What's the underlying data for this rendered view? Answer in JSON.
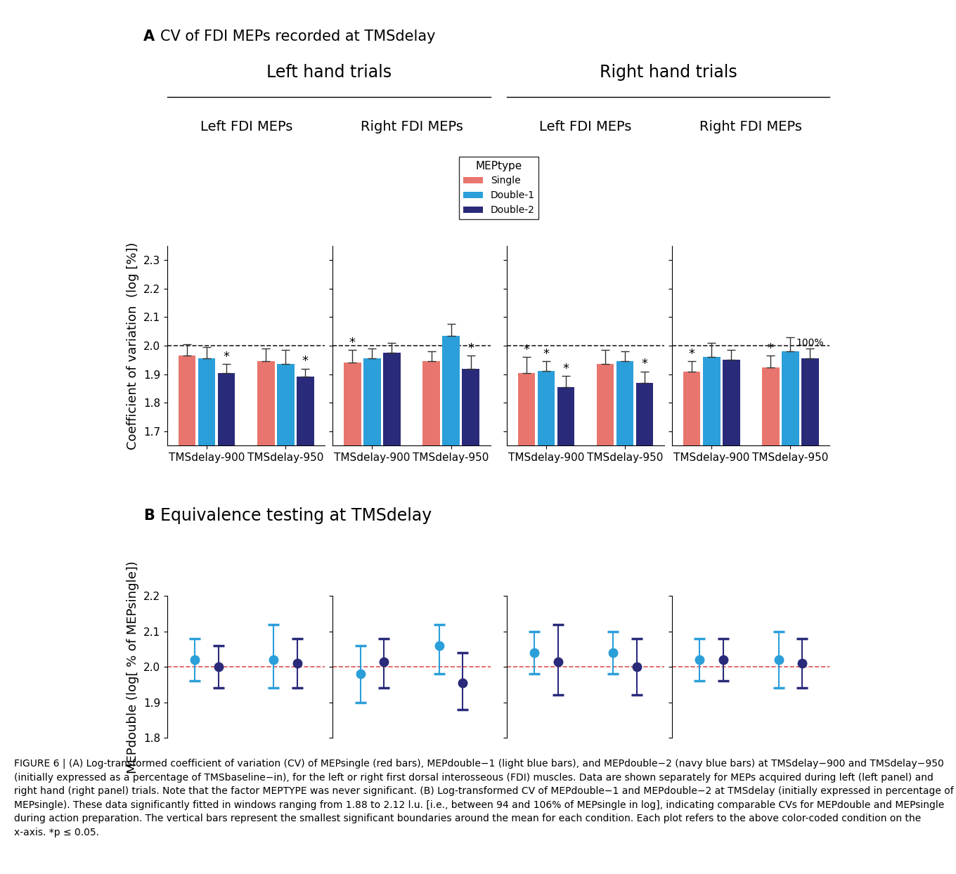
{
  "panel_a": {
    "label": "A",
    "title": "CV of FDI MEPs recorded at TMSdelay",
    "groups": [
      "Left hand trials",
      "Right hand trials"
    ],
    "legend_title": "MEPtype"
  },
  "panel_b": {
    "label": "B",
    "title": "Equivalence testing at TMSdelay"
  },
  "caption": "FIGURE 6 | (A) Log-transformed coefficient of variation (CV) of MEPsingle (red bars), MEPdouble−1 (light blue bars), and MEPdouble−2 (navy blue bars) at TMSdelay−900 and TMSdelay−950 (initially expressed as a percentage of TMSbaseline−in), for the left or right first dorsal interosseous (FDI) muscles. Data are shown separately for MEPs acquired during left (left panel) and right hand (right panel) trials. Note that the factor MEPTYPE was never significant. (B) Log-transformed CV of MEPdouble−1 and MEPdouble−2 at TMSdelay (initially expressed in percentage of MEPsingle). These data significantly fitted in windows ranging from 1.88 to 2.12 l.u. [i.e., between 94 and 106% of MEPsingle in log], indicating comparable CVs for MEPdouble and MEPsingle during action preparation. The vertical bars represent the smallest significant boundaries around the mean for each condition. Each plot refers to the above color-coded condition on the x-axis. *p ≤ 0.05.",
  "chart_data": [
    {
      "type": "bar",
      "title": "Left FDI MEPs",
      "y_label": "Coefficient of variation  (log [%])",
      "categories": [
        "TMSdelay-900",
        "TMSdelay-950"
      ],
      "ylim": [
        1.65,
        2.35
      ],
      "yticks": [
        1.7,
        1.8,
        1.9,
        2.0,
        2.1,
        2.2,
        2.3
      ],
      "tick_labels": true,
      "legend": "center",
      "reference_line": {
        "value": 2.0,
        "color": "#222222",
        "line_style": "dashed"
      },
      "series": [
        {
          "name": "Single",
          "color": "#e8766e",
          "values": [
            1.965,
            1.945
          ],
          "errors": [
            0.04,
            0.045
          ]
        },
        {
          "name": "Double-1",
          "color": "#2b9fd9",
          "values": [
            1.955,
            1.935
          ],
          "errors": [
            0.04,
            0.05
          ]
        },
        {
          "name": "Double-2",
          "color": "#2a2a7a",
          "values": [
            1.905,
            1.893
          ],
          "errors": [
            0.03,
            0.027
          ]
        }
      ],
      "annotations": [
        {
          "category": "TMSdelay-900",
          "series": "Double-2",
          "text": "*"
        },
        {
          "category": "TMSdelay-950",
          "series": "Double-2",
          "text": "*"
        }
      ]
    },
    {
      "type": "bar",
      "title": "Right FDI MEPs",
      "categories": [
        "TMSdelay-900",
        "TMSdelay-950"
      ],
      "ylim": [
        1.65,
        2.35
      ],
      "yticks": [
        1.7,
        1.8,
        1.9,
        2.0,
        2.1,
        2.2,
        2.3
      ],
      "tick_labels": "x",
      "reference_line": {
        "value": 2.0,
        "color": "#222222",
        "line_style": "dashed"
      },
      "series": [
        {
          "name": "Single",
          "color": "#e8766e",
          "values": [
            1.94,
            1.945
          ],
          "errors": [
            0.045,
            0.035
          ]
        },
        {
          "name": "Double-1",
          "color": "#2b9fd9",
          "values": [
            1.955,
            2.035
          ],
          "errors": [
            0.035,
            0.04
          ]
        },
        {
          "name": "Double-2",
          "color": "#2a2a7a",
          "values": [
            1.975,
            1.92
          ],
          "errors": [
            0.035,
            0.045
          ]
        }
      ],
      "annotations": [
        {
          "category": "TMSdelay-900",
          "series": "Single",
          "text": "*"
        },
        {
          "category": "TMSdelay-950",
          "series": "Double-2",
          "text": "*"
        }
      ]
    },
    {
      "type": "bar",
      "title": "Left FDI MEPs",
      "categories": [
        "TMSdelay-900",
        "TMSdelay-950"
      ],
      "ylim": [
        1.65,
        2.35
      ],
      "yticks": [
        1.7,
        1.8,
        1.9,
        2.0,
        2.1,
        2.2,
        2.3
      ],
      "tick_labels": "x",
      "reference_line": {
        "value": 2.0,
        "color": "#222222",
        "line_style": "dashed"
      },
      "series": [
        {
          "name": "Single",
          "color": "#e8766e",
          "values": [
            1.905,
            1.935
          ],
          "errors": [
            0.055,
            0.05
          ]
        },
        {
          "name": "Double-1",
          "color": "#2b9fd9",
          "values": [
            1.912,
            1.945
          ],
          "errors": [
            0.033,
            0.035
          ]
        },
        {
          "name": "Double-2",
          "color": "#2a2a7a",
          "values": [
            1.855,
            1.87
          ],
          "errors": [
            0.04,
            0.04
          ]
        }
      ],
      "annotations": [
        {
          "category": "TMSdelay-900",
          "series": "Single",
          "text": "*"
        },
        {
          "category": "TMSdelay-900",
          "series": "Double-1",
          "text": "*"
        },
        {
          "category": "TMSdelay-900",
          "series": "Double-2",
          "text": "*"
        },
        {
          "category": "TMSdelay-950",
          "series": "Double-2",
          "text": "*"
        }
      ]
    },
    {
      "type": "bar",
      "title": "Right FDI MEPs",
      "categories": [
        "TMSdelay-900",
        "TMSdelay-950"
      ],
      "ylim": [
        1.65,
        2.35
      ],
      "yticks": [
        1.7,
        1.8,
        1.9,
        2.0,
        2.1,
        2.2,
        2.3
      ],
      "tick_labels": "x",
      "reference_line": {
        "value": 2.0,
        "color": "#222222",
        "line_style": "dashed"
      },
      "series": [
        {
          "name": "Single",
          "color": "#e8766e",
          "values": [
            1.91,
            1.925
          ],
          "errors": [
            0.035,
            0.04
          ]
        },
        {
          "name": "Double-1",
          "color": "#2b9fd9",
          "values": [
            1.96,
            1.98
          ],
          "errors": [
            0.05,
            0.05
          ]
        },
        {
          "name": "Double-2",
          "color": "#2a2a7a",
          "values": [
            1.95,
            1.955
          ],
          "errors": [
            0.035,
            0.035
          ]
        }
      ],
      "annotations": [
        {
          "category": "TMSdelay-900",
          "series": "Single",
          "text": "*"
        },
        {
          "category": "TMSdelay-950",
          "series": "Single",
          "text": "*"
        },
        {
          "category": "TMSdelay-950",
          "series": "Double-2",
          "text": "100%"
        }
      ]
    },
    {
      "type": "scatter",
      "y_label": "MEPdouble (log[ % of MEPsingle])",
      "marker": "circle",
      "categories": [
        null,
        null
      ],
      "ylim": [
        1.8,
        2.2
      ],
      "yticks": [
        1.8,
        1.9,
        2.0,
        2.1,
        2.2
      ],
      "tick_labels": "y",
      "reference_line": {
        "value": 2.0,
        "color": "#e05050",
        "line_style": "dashed"
      },
      "series": [
        {
          "color": "#2b9fd9",
          "values": [
            2.02,
            2.02
          ],
          "lower": [
            1.96,
            1.94
          ],
          "upper": [
            2.08,
            2.12
          ]
        },
        {
          "color": "#2a2a7a",
          "values": [
            2.0,
            2.01
          ],
          "lower": [
            1.94,
            1.94
          ],
          "upper": [
            2.06,
            2.08
          ]
        }
      ]
    },
    {
      "type": "scatter",
      "marker": "circle",
      "categories": [
        null,
        null
      ],
      "ylim": [
        1.8,
        2.2
      ],
      "yticks": [
        1.8,
        1.9,
        2.0,
        2.1,
        2.2
      ],
      "tick_labels": false,
      "reference_line": {
        "value": 2.0,
        "color": "#e05050",
        "line_style": "dashed"
      },
      "series": [
        {
          "color": "#2b9fd9",
          "values": [
            1.98,
            2.06
          ],
          "lower": [
            1.9,
            1.98
          ],
          "upper": [
            2.06,
            2.12
          ]
        },
        {
          "color": "#2a2a7a",
          "values": [
            2.015,
            1.955
          ],
          "lower": [
            1.94,
            1.88
          ],
          "upper": [
            2.08,
            2.04
          ]
        }
      ]
    },
    {
      "type": "scatter",
      "marker": "circle",
      "categories": [
        null,
        null
      ],
      "ylim": [
        1.8,
        2.2
      ],
      "yticks": [
        1.8,
        1.9,
        2.0,
        2.1,
        2.2
      ],
      "tick_labels": false,
      "reference_line": {
        "value": 2.0,
        "color": "#e05050",
        "line_style": "dashed"
      },
      "series": [
        {
          "color": "#2b9fd9",
          "values": [
            2.04,
            2.04
          ],
          "lower": [
            1.98,
            1.98
          ],
          "upper": [
            2.1,
            2.1
          ]
        },
        {
          "color": "#2a2a7a",
          "values": [
            2.015,
            2.0
          ],
          "lower": [
            1.92,
            1.92
          ],
          "upper": [
            2.12,
            2.08
          ]
        }
      ]
    },
    {
      "type": "scatter",
      "marker": "circle",
      "categories": [
        null,
        null
      ],
      "ylim": [
        1.8,
        2.2
      ],
      "yticks": [
        1.8,
        1.9,
        2.0,
        2.1,
        2.2
      ],
      "tick_labels": false,
      "reference_line": {
        "value": 2.0,
        "color": "#e05050",
        "line_style": "dashed"
      },
      "series": [
        {
          "color": "#2b9fd9",
          "values": [
            2.02,
            2.02
          ],
          "lower": [
            1.96,
            1.94
          ],
          "upper": [
            2.08,
            2.1
          ]
        },
        {
          "color": "#2a2a7a",
          "values": [
            2.02,
            2.01
          ],
          "lower": [
            1.96,
            1.94
          ],
          "upper": [
            2.08,
            2.08
          ]
        }
      ]
    }
  ]
}
